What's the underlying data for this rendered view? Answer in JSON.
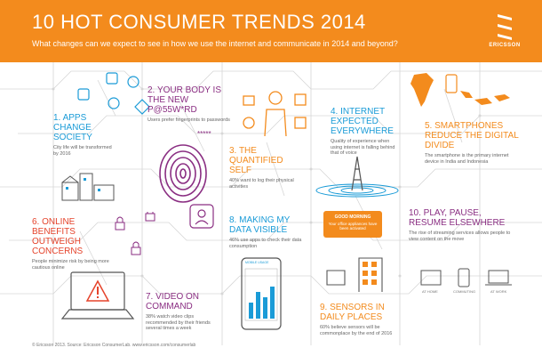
{
  "header": {
    "title": "10 HOT CONSUMER TRENDS 2014",
    "subtitle": "What changes can we expect to see in how we use the internet and communicate in 2014 and beyond?",
    "logo_text": "ERICSSON"
  },
  "trends": [
    {
      "title": "1. APPS CHANGE SOCIETY",
      "desc": "City life will be transformed by 2016"
    },
    {
      "title": "2. YOUR BODY IS THE NEW P@55W*RD",
      "desc": "Users prefer fingerprints to passwords"
    },
    {
      "title": "3. THE QUANTIFIED SELF",
      "desc": "40% want to log their physical activities"
    },
    {
      "title": "4. INTERNET EXPECTED EVERYWHERE",
      "desc": "Quality of experience when using internet is falling behind that of voice"
    },
    {
      "title": "5. SMARTPHONES REDUCE THE DIGITAL DIVIDE",
      "desc": "The smartphone is the primary internet device in India and Indonesia"
    },
    {
      "title": "6. ONLINE BENEFITS OUTWEIGH CONCERNS",
      "desc": "People minimize risk by being more cautious online"
    },
    {
      "title": "7. VIDEO ON COMMAND",
      "desc": "38% watch video clips recommended by their friends several times a week"
    },
    {
      "title": "8. MAKING MY DATA VISIBLE",
      "desc": "46% use apps to check their data consumption"
    },
    {
      "title": "9. SENSORS IN DAILY PLACES",
      "desc": "60% believe sensors will be commonplace by the end of 2016"
    },
    {
      "title": "10. PLAY, PAUSE, RESUME ELSEWHERE",
      "desc": "The rise of streaming services allows people to view content on the move"
    }
  ],
  "sensor_notice": {
    "heading": "GOOD MORNING",
    "message": "Your office appliances have been activated"
  },
  "phone_label": "MOBILE USAGE",
  "places": [
    "AT HOME",
    "COMMUTING",
    "AT WORK"
  ],
  "password_stars": "*****",
  "footer": "© Ericsson 2013. Source: Ericsson ConsumerLab. www.ericsson.com/consumerlab",
  "colors": {
    "orange": "#f38b1d",
    "blue": "#1a9bd7",
    "purple": "#8a2e82",
    "red": "#e5432b"
  }
}
